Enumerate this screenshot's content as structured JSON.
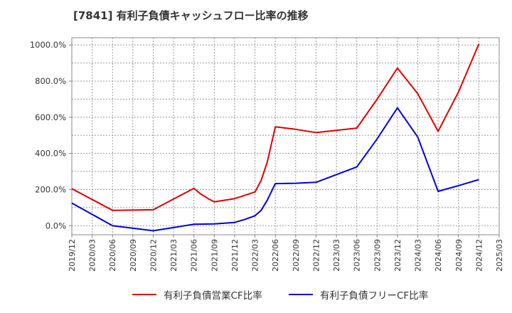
{
  "chart_data": {
    "type": "line",
    "title": "[7841]  有利子負債キャッシュフロー比率の推移",
    "xlabel": "",
    "ylabel": "",
    "ylim": [
      -50,
      1040
    ],
    "yticks": [
      0,
      200,
      400,
      600,
      800,
      1000
    ],
    "ytick_labels": [
      "0.0%",
      "200.0%",
      "400.0%",
      "600.0%",
      "800.0%",
      "1000.0%"
    ],
    "xticks": [
      "2019/12",
      "2020/03",
      "2020/06",
      "2020/09",
      "2020/12",
      "2021/03",
      "2021/06",
      "2021/09",
      "2021/12",
      "2022/03",
      "2022/06",
      "2022/09",
      "2022/12",
      "2023/03",
      "2023/06",
      "2023/09",
      "2023/12",
      "2024/03",
      "2024/06",
      "2024/09",
      "2024/12",
      "2025/03"
    ],
    "grid": true,
    "legend_position": "bottom",
    "series": [
      {
        "name": "有利子負債営業CF比率",
        "color": "#e00000",
        "points": [
          [
            0,
            205
          ],
          [
            2,
            85
          ],
          [
            4,
            88
          ],
          [
            6,
            207
          ],
          [
            6.3,
            178
          ],
          [
            6.7,
            150
          ],
          [
            7,
            132
          ],
          [
            8,
            150
          ],
          [
            8.5,
            168
          ],
          [
            9,
            187
          ],
          [
            9.3,
            250
          ],
          [
            9.6,
            350
          ],
          [
            10,
            547
          ],
          [
            11,
            533
          ],
          [
            12,
            515
          ],
          [
            14,
            540
          ],
          [
            15,
            700
          ],
          [
            16,
            872
          ],
          [
            17,
            730
          ],
          [
            18,
            522
          ],
          [
            19,
            740
          ],
          [
            20,
            1005
          ]
        ]
      },
      {
        "name": "有利子負債フリーCF比率",
        "color": "#0000e0",
        "points": [
          [
            0,
            125
          ],
          [
            2,
            0
          ],
          [
            4,
            -28
          ],
          [
            6,
            8
          ],
          [
            7,
            10
          ],
          [
            8,
            18
          ],
          [
            8.5,
            35
          ],
          [
            9,
            55
          ],
          [
            9.3,
            85
          ],
          [
            9.6,
            140
          ],
          [
            10,
            233
          ],
          [
            11,
            235
          ],
          [
            12,
            240
          ],
          [
            14,
            325
          ],
          [
            15,
            480
          ],
          [
            16,
            652
          ],
          [
            17,
            490
          ],
          [
            18,
            190
          ],
          [
            19,
            222
          ],
          [
            20,
            255
          ]
        ]
      }
    ]
  }
}
